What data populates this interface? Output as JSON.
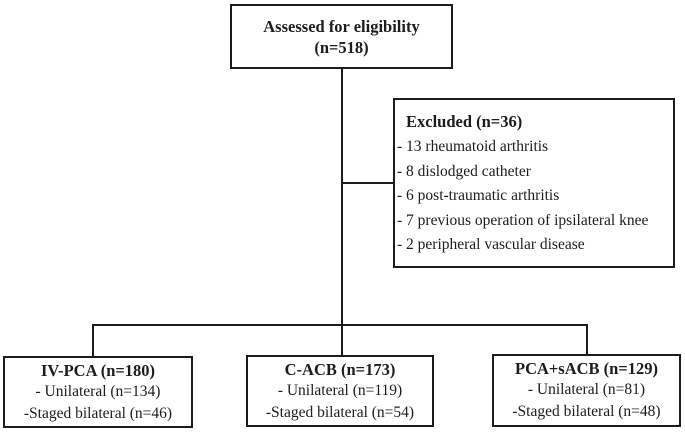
{
  "figure": {
    "background_color": "#ffffff",
    "line_color": "#1c1c1c"
  },
  "top_box": {
    "line1": "Assessed for eligibility",
    "line2": "(n=518)"
  },
  "excluded_box": {
    "title": "Excluded (n=36)",
    "items": [
      "- 13 rheumatoid arthritis",
      "- 8 dislodged catheter",
      "- 6 post-traumatic arthritis",
      "- 7 previous operation of ipsilateral knee",
      "- 2 peripheral vascular disease"
    ]
  },
  "group_boxes": [
    {
      "title": "IV-PCA (n=180)",
      "line1": "- Unilateral (n=134)",
      "line2": "-Staged bilateral (n=46)"
    },
    {
      "title": "C-ACB (n=173)",
      "line1": "- Unilateral (n=119)",
      "line2": "-Staged bilateral (n=54)"
    },
    {
      "title": "PCA+sACB (n=129)",
      "line1": "- Unilateral (n=81)",
      "line2": "-Staged bilateral (n=48)"
    }
  ]
}
